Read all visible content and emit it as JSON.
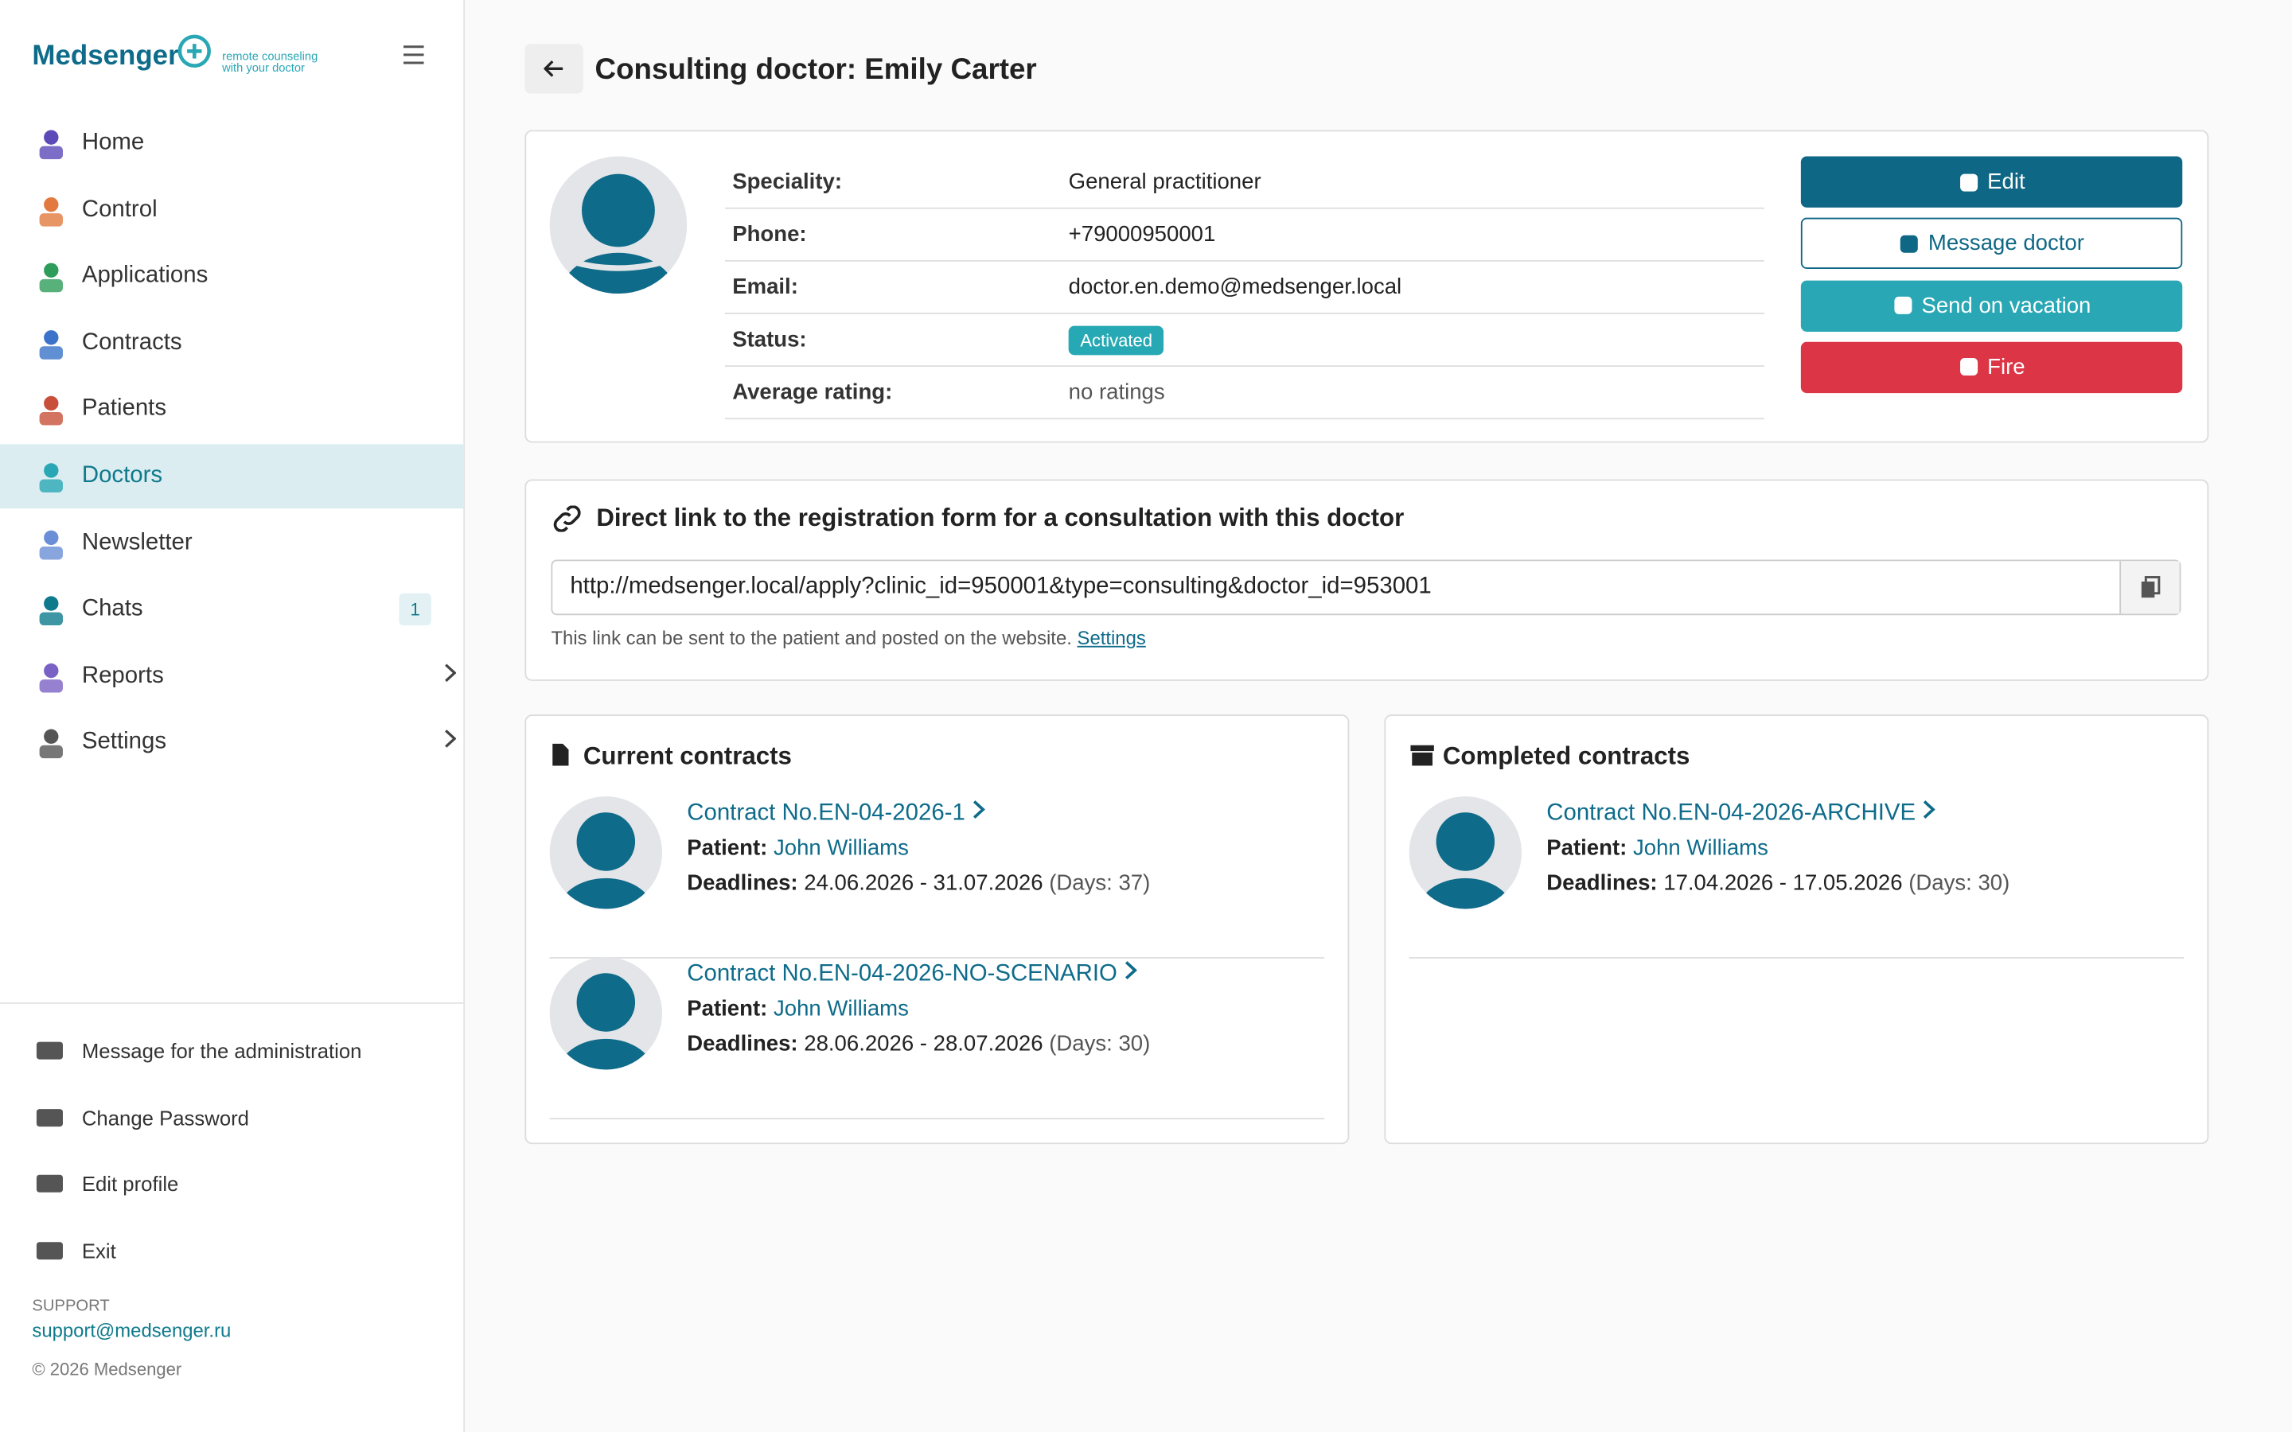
{
  "sidebar": {
    "logo": "Medsenger",
    "tagline": [
      "remote counseling",
      "with your doctor"
    ],
    "menu": [
      {
        "label": "Home"
      },
      {
        "label": "Control"
      },
      {
        "label": "Applications"
      },
      {
        "label": "Contracts"
      },
      {
        "label": "Patients"
      },
      {
        "label": "Doctors"
      },
      {
        "label": "Newsletter"
      },
      {
        "label": "Chats",
        "badge": "1"
      },
      {
        "label": "Reports"
      },
      {
        "label": "Settings"
      }
    ],
    "footer_links": [
      "Message for the administration",
      "Change Password",
      "Edit profile",
      "Exit"
    ],
    "support_label": "SUPPORT",
    "support_email": "support@medsenger.ru",
    "copyright": "© 2026 Medsenger"
  },
  "header": {
    "title": "Consulting doctor: Emily Carter"
  },
  "profile": {
    "rows": [
      [
        "Speciality:",
        "General practitioner"
      ],
      [
        "Phone:",
        "+79000950001"
      ],
      [
        "Email:",
        "doctor.en.demo@medsenger.local"
      ],
      [
        "Status:",
        "Activated"
      ],
      [
        "Average rating:",
        "no ratings"
      ]
    ],
    "actions": [
      "Edit",
      "Message doctor",
      "Send on vacation",
      "Fire"
    ]
  },
  "link_card": {
    "title": "Direct link to the registration form for a consultation with this doctor",
    "url": "http://medsenger.local/apply?clinic_id=950001&type=consulting&doctor_id=953001",
    "note": "This link can be sent to the patient and posted on the website.",
    "settings_link": "Settings"
  },
  "current_contracts": {
    "title": "Current contracts",
    "items": [
      {
        "title": "Contract No.EN-04-2026-1",
        "patient_label": "Patient:",
        "patient": "John Williams",
        "deadlines_label": "Deadlines:",
        "dates": "24.06.2026 - 31.07.2026",
        "days": "(Days: 37)"
      },
      {
        "title": "Contract No.EN-04-2026-NO-SCENARIO",
        "patient_label": "Patient:",
        "patient": "John Williams",
        "deadlines_label": "Deadlines:",
        "dates": "28.06.2026 - 28.07.2026",
        "days": "(Days: 30)"
      }
    ]
  },
  "completed_contracts": {
    "title": "Completed contracts",
    "items": [
      {
        "title": "Contract No.EN-04-2026-ARCHIVE",
        "patient_label": "Patient:",
        "patient": "John Williams",
        "deadlines_label": "Deadlines:",
        "dates": "17.04.2026 - 17.05.2026",
        "days": "(Days: 30)"
      }
    ]
  }
}
